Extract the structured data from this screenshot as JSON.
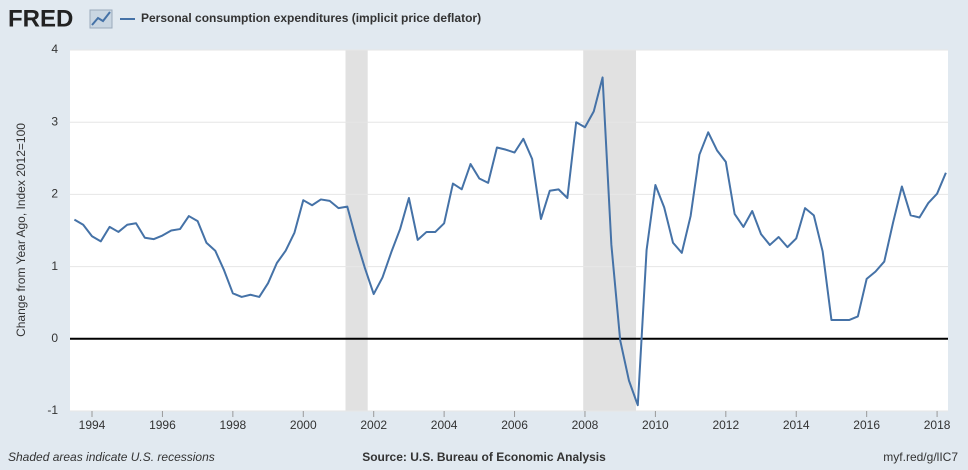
{
  "chart_data": {
    "type": "line",
    "logo": "FRED",
    "ylabel": "Change from Year Ago, Index 2012=100",
    "note": "Shaded areas indicate U.S. recessions",
    "source": "Source: U.S. Bureau of Economic Analysis",
    "link": "myf.red/g/lIC7",
    "x": [
      1993.5,
      1993.75,
      1994,
      1994.25,
      1994.5,
      1994.75,
      1995,
      1995.25,
      1995.5,
      1995.75,
      1996,
      1996.25,
      1996.5,
      1996.75,
      1997,
      1997.25,
      1997.5,
      1997.75,
      1998,
      1998.25,
      1998.5,
      1998.75,
      1999,
      1999.25,
      1999.5,
      1999.75,
      2000,
      2000.25,
      2000.5,
      2000.75,
      2001,
      2001.25,
      2001.5,
      2001.75,
      2002,
      2002.25,
      2002.5,
      2002.75,
      2003,
      2003.25,
      2003.5,
      2003.75,
      2004,
      2004.25,
      2004.5,
      2004.75,
      2005,
      2005.25,
      2005.5,
      2005.75,
      2006,
      2006.25,
      2006.5,
      2006.75,
      2007,
      2007.25,
      2007.5,
      2007.75,
      2008,
      2008.25,
      2008.5,
      2008.75,
      2009,
      2009.25,
      2009.5,
      2009.75,
      2010,
      2010.25,
      2010.5,
      2010.75,
      2011,
      2011.25,
      2011.5,
      2011.75,
      2012,
      2012.25,
      2012.5,
      2012.75,
      2013,
      2013.25,
      2013.5,
      2013.75,
      2014,
      2014.25,
      2014.5,
      2014.75,
      2015,
      2015.25,
      2015.5,
      2015.75,
      2016,
      2016.25,
      2016.5,
      2016.75,
      2017,
      2017.25,
      2017.5,
      2017.75,
      2018,
      2018.25
    ],
    "series": [
      {
        "name": "Personal consumption expenditures (implicit price deflator)",
        "color": "#4572a7",
        "values": [
          1.65,
          1.58,
          1.42,
          1.35,
          1.55,
          1.48,
          1.58,
          1.6,
          1.4,
          1.38,
          1.43,
          1.5,
          1.52,
          1.7,
          1.63,
          1.33,
          1.22,
          0.95,
          0.63,
          0.58,
          0.61,
          0.58,
          0.77,
          1.05,
          1.22,
          1.47,
          1.92,
          1.85,
          1.93,
          1.91,
          1.81,
          1.83,
          1.38,
          0.98,
          0.62,
          0.85,
          1.2,
          1.52,
          1.95,
          1.37,
          1.48,
          1.48,
          1.6,
          2.15,
          2.07,
          2.42,
          2.22,
          2.16,
          2.65,
          2.62,
          2.58,
          2.77,
          2.49,
          1.66,
          2.05,
          2.07,
          1.95,
          3.0,
          2.93,
          3.15,
          3.62,
          1.3,
          -0.02,
          -0.58,
          -0.92,
          1.23,
          2.13,
          1.82,
          1.33,
          1.19,
          1.7,
          2.55,
          2.86,
          2.61,
          2.45,
          1.73,
          1.55,
          1.77,
          1.45,
          1.3,
          1.41,
          1.27,
          1.39,
          1.81,
          1.71,
          1.21,
          0.26,
          0.26,
          0.26,
          0.31,
          0.83,
          0.93,
          1.07,
          1.61,
          2.11,
          1.71,
          1.68,
          1.88,
          2.01,
          2.3
        ]
      }
    ],
    "recessions": [
      [
        2001.2,
        2001.83
      ],
      [
        2007.95,
        2009.45
      ]
    ],
    "xlim": [
      1993.375,
      2018.31
    ],
    "xticks": [
      1994,
      1996,
      1998,
      2000,
      2002,
      2004,
      2006,
      2008,
      2010,
      2012,
      2014,
      2016,
      2018
    ],
    "ylim": [
      -1,
      4
    ],
    "yticks": [
      -1,
      0,
      1,
      2,
      3,
      4
    ],
    "grid": true
  }
}
